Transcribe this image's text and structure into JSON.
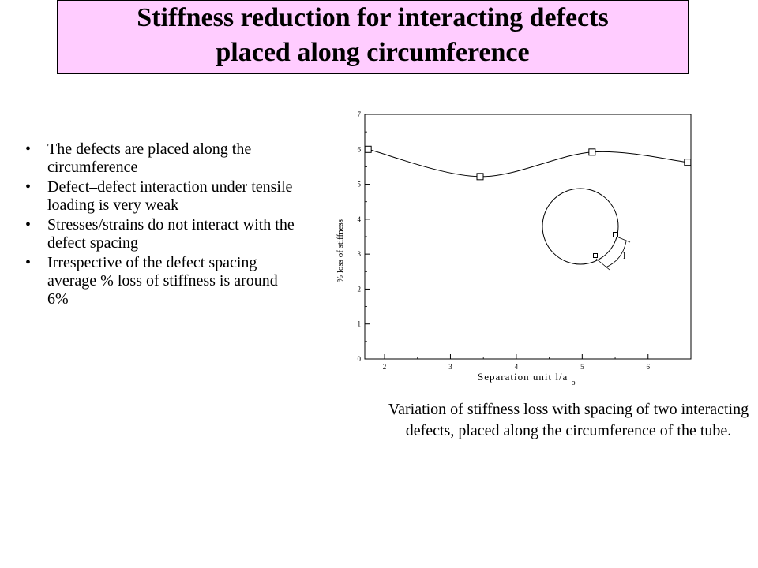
{
  "title": {
    "line1": "Stiffness reduction for interacting defects",
    "line2": "placed along circumference"
  },
  "bullets": [
    "The defects are placed along the circumference",
    " Defect–defect interaction under tensile loading is very weak",
    "Stresses/strains do not interact with the defect spacing",
    "Irrespective of the defect spacing average % loss of stiffness is around 6%"
  ],
  "caption": "Variation of stiffness loss with spacing of two interacting defects, placed along the circumference of the tube.",
  "chart_data": {
    "type": "line",
    "xlabel": "Separation unit l/a",
    "xlabel_subscript": "o",
    "ylabel": "% loss of stiffness",
    "xlim": [
      1.7,
      6.65
    ],
    "ylim": [
      0,
      7
    ],
    "x_ticks": [
      2,
      3,
      4,
      5,
      6
    ],
    "y_ticks": [
      0,
      1,
      2,
      3,
      4,
      5,
      6,
      7
    ],
    "series": [
      {
        "marker": "square",
        "points": [
          {
            "x": 1.75,
            "y": 6.0
          },
          {
            "x": 3.45,
            "y": 5.22
          },
          {
            "x": 5.15,
            "y": 5.92
          },
          {
            "x": 6.6,
            "y": 5.63
          }
        ]
      }
    ],
    "inset": {
      "description_label": "l"
    },
    "grid": false
  }
}
